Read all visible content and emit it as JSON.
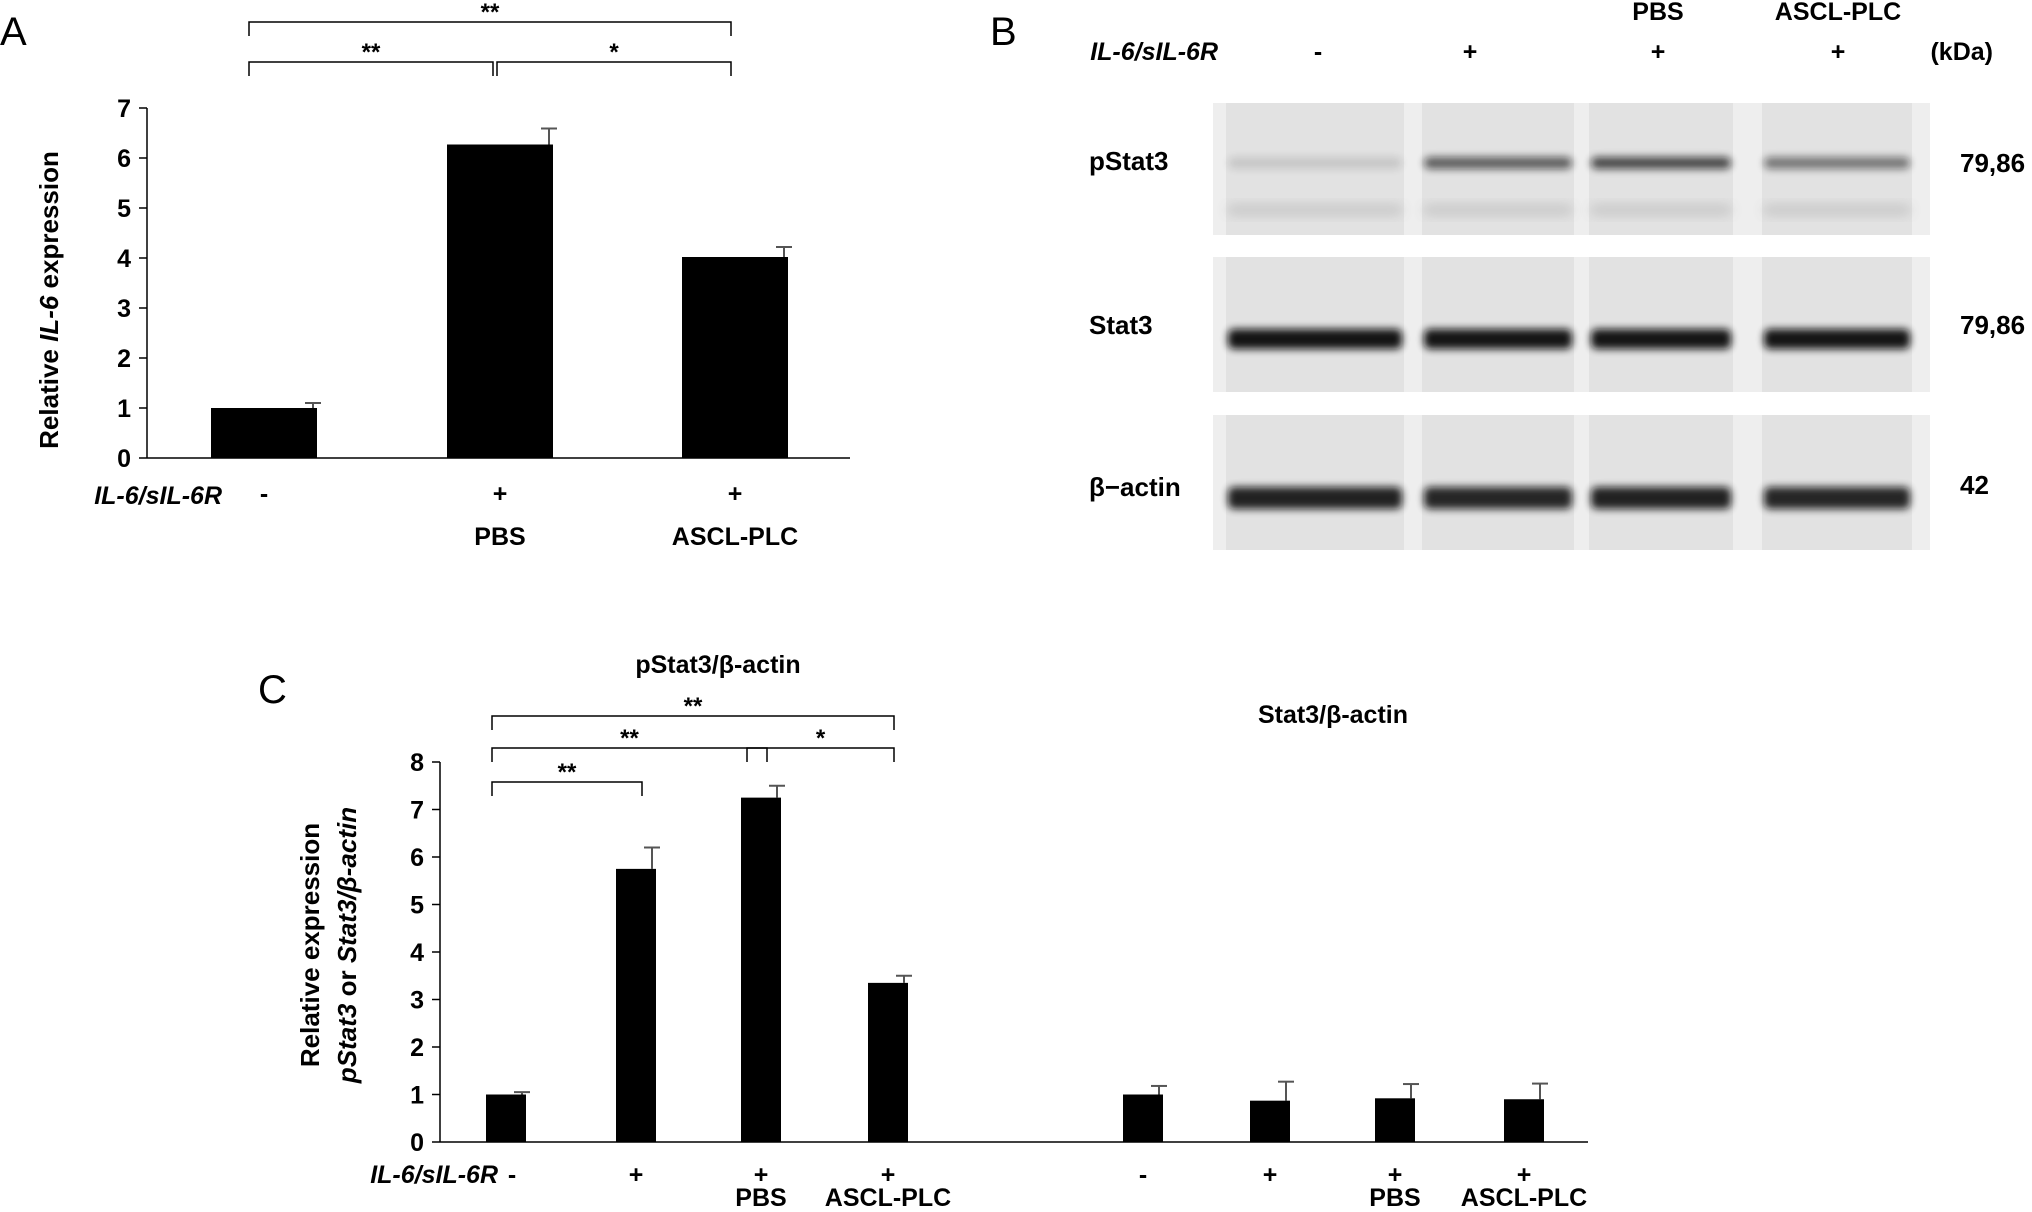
{
  "panels": {
    "a": "A",
    "b": "B",
    "c": "C"
  },
  "chart_data": [
    {
      "id": "A",
      "type": "bar",
      "ylabel_prefix": "Relative ",
      "ylabel_italic": "IL-6",
      "ylabel_suffix": " expression",
      "ylim": [
        0,
        7
      ],
      "yticks": [
        0,
        1,
        2,
        3,
        4,
        5,
        6,
        7
      ],
      "treatment_label": "IL-6/sIL-6R",
      "categories": [
        {
          "treatment": "-",
          "group": ""
        },
        {
          "treatment": "+",
          "group": "PBS"
        },
        {
          "treatment": "+",
          "group": "ASCL-PLC"
        }
      ],
      "values": [
        1.0,
        6.27,
        4.02
      ],
      "errors": [
        0.1,
        0.32,
        0.2
      ],
      "significance": [
        {
          "from": 0,
          "to": 2,
          "label": "**"
        },
        {
          "from": 0,
          "to": 1,
          "label": "**"
        },
        {
          "from": 1,
          "to": 2,
          "label": "*"
        }
      ]
    },
    {
      "id": "C",
      "type": "bar",
      "ylabel_line1": "Relative expression",
      "ylabel_line2_italic1": "pStat3",
      "ylabel_line2_mid": " or ",
      "ylabel_line2_italic2": "Stat3/β-actin",
      "ylim": [
        0,
        8
      ],
      "yticks": [
        0,
        1,
        2,
        3,
        4,
        5,
        6,
        7,
        8
      ],
      "treatment_label": "IL-6/sIL-6R",
      "groups": [
        {
          "title": "pStat3/β-actin",
          "categories": [
            {
              "treatment": "-",
              "group": ""
            },
            {
              "treatment": "+",
              "group": ""
            },
            {
              "treatment": "+",
              "group": "PBS"
            },
            {
              "treatment": "+",
              "group": "ASCL-PLC"
            }
          ],
          "values": [
            1.0,
            5.75,
            7.25,
            3.35
          ],
          "errors": [
            0.05,
            0.45,
            0.25,
            0.15
          ],
          "significance": [
            {
              "from": 0,
              "to": 3,
              "label": "**"
            },
            {
              "from": 0,
              "to": 2,
              "label": "**"
            },
            {
              "from": 2,
              "to": 3,
              "label": "*"
            },
            {
              "from": 0,
              "to": 1,
              "label": "**"
            }
          ]
        },
        {
          "title": "Stat3/β-actin",
          "categories": [
            {
              "treatment": "-",
              "group": ""
            },
            {
              "treatment": "+",
              "group": ""
            },
            {
              "treatment": "+",
              "group": "PBS"
            },
            {
              "treatment": "+",
              "group": "ASCL-PLC"
            }
          ],
          "values": [
            1.0,
            0.87,
            0.92,
            0.9
          ],
          "errors": [
            0.18,
            0.4,
            0.3,
            0.33
          ],
          "significance": []
        }
      ]
    }
  ],
  "blot": {
    "treatment_label": "IL-6/sIL-6R",
    "lanes": [
      {
        "treatment": "-",
        "group": ""
      },
      {
        "treatment": "+",
        "group": ""
      },
      {
        "treatment": "+",
        "group": "PBS"
      },
      {
        "treatment": "+",
        "group": "ASCL-PLC"
      }
    ],
    "unit": "(kDa)",
    "rows": [
      {
        "name": "pStat3",
        "kda": "79,86"
      },
      {
        "name": "Stat3",
        "kda": "79,86"
      },
      {
        "name": "β−actin",
        "kda": "42"
      }
    ]
  }
}
